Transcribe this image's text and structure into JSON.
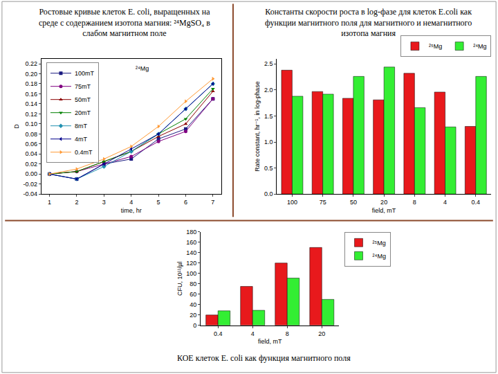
{
  "chart_data": [
    {
      "type": "line",
      "title": "Ростовые кривые клеток E. coli, выращенных на среде с содержанием изотопа магния: ²⁴MgSO₄ в слабом магнитном поле",
      "x_label": "time, hr",
      "y_label": "D",
      "annotations": [
        "²⁴Mg"
      ],
      "x": [
        1,
        2,
        3,
        4,
        5,
        6,
        7
      ],
      "series": [
        {
          "name": "100mT",
          "color": "#1a1a80",
          "marker": "square",
          "values": [
            0,
            -0.01,
            0.02,
            0.03,
            0.07,
            0.09,
            0.15
          ]
        },
        {
          "name": "75mT",
          "color": "#800080",
          "marker": "circle",
          "values": [
            0,
            0.005,
            0.02,
            0.035,
            0.065,
            0.085,
            0.15
          ]
        },
        {
          "name": "50mT",
          "color": "#8b0000",
          "marker": "triangle-up",
          "values": [
            0,
            0.005,
            0.025,
            0.045,
            0.075,
            0.1,
            0.165
          ]
        },
        {
          "name": "20mT",
          "color": "#008000",
          "marker": "triangle-down",
          "values": [
            0,
            0.005,
            0.025,
            0.045,
            0.08,
            0.11,
            0.17
          ]
        },
        {
          "name": "8mT",
          "color": "#2090b0",
          "marker": "diamond",
          "values": [
            0,
            -0.01,
            0.015,
            0.045,
            0.08,
            0.13,
            0.18
          ]
        },
        {
          "name": "4mT",
          "color": "#00008b",
          "marker": "triangle-left",
          "values": [
            0,
            -0.01,
            0.02,
            0.05,
            0.08,
            0.13,
            0.18
          ]
        },
        {
          "name": "0.4mT",
          "color": "#ff9933",
          "marker": "triangle-right",
          "values": [
            0,
            0.01,
            0.03,
            0.055,
            0.095,
            0.145,
            0.19
          ]
        }
      ],
      "xlim": [
        0.7,
        7.3
      ],
      "xticks": [
        1,
        2,
        3,
        4,
        5,
        6,
        7
      ],
      "ylim": [
        -0.04,
        0.23
      ],
      "yticks": [
        -0.04,
        -0.02,
        {
          "value": 0,
          "label": "0.00"
        },
        0.02,
        0.04,
        0.06,
        0.08,
        {
          "value": 0.1,
          "label": "0.10"
        },
        0.12,
        0.14,
        0.16,
        0.18,
        {
          "value": 0.2,
          "label": "0.20"
        },
        0.22
      ],
      "legend": "upper left",
      "grid": false
    },
    {
      "type": "bar",
      "title": "Константы скорости роста в log-фазе для клеток E.coli как функции магнитного поля для магнитного и немагнитного изотопа магния",
      "x_label": "field, mT",
      "y_label": "Rate constant, hr⁻¹, in log-phase",
      "categories": [
        "100",
        "75",
        "50",
        "20",
        "8",
        "4",
        "0.4"
      ],
      "series": [
        {
          "name": "²⁵Mg",
          "color": "#e8191c",
          "values": [
            2.38,
            1.97,
            1.84,
            1.81,
            2.32,
            1.96,
            1.3
          ]
        },
        {
          "name": "²⁴Mg",
          "color": "#33ee33",
          "values": [
            1.88,
            1.92,
            2.26,
            2.44,
            1.66,
            1.29,
            2.26
          ]
        }
      ],
      "ylim": [
        0,
        2.6
      ],
      "yticks": [
        {
          "value": 0,
          "label": "0.0"
        },
        0.5,
        {
          "value": 1,
          "label": "1.0"
        },
        1.5,
        {
          "value": 2,
          "label": "2.0"
        },
        2.5
      ],
      "legend": "upper right",
      "grid": false
    },
    {
      "type": "bar",
      "title": "КОЕ клеток E. coli как функция магнитного поля",
      "x_label": "field, mT",
      "y_label": "CFU, 10¹¹/µl",
      "categories": [
        "0.4",
        "4",
        "8",
        "20"
      ],
      "series": [
        {
          "name": "²⁵Mg",
          "color": "#e8191c",
          "values": [
            20,
            75,
            120,
            150
          ]
        },
        {
          "name": "²⁴Mg",
          "color": "#33ee33",
          "values": [
            28,
            29,
            91,
            50
          ]
        }
      ],
      "ylim": [
        0,
        180
      ],
      "yticks": [
        0,
        20,
        40,
        60,
        80,
        100,
        120,
        140,
        160,
        180
      ],
      "legend": "outside right",
      "grid": false
    }
  ]
}
